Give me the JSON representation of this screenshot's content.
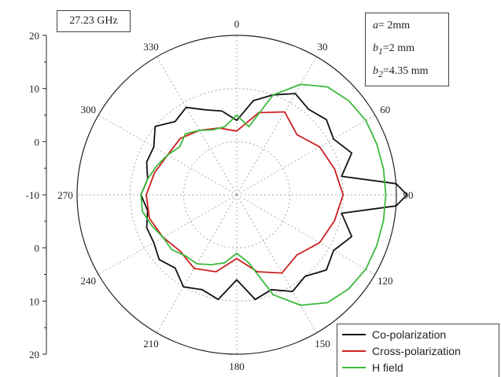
{
  "frequency_label": "27.23 GHz",
  "params": {
    "a": "a",
    "a_val": "= 2mm",
    "b": "b",
    "b1_sub": "1",
    "b1_val": "=2 mm",
    "b2_sub": "2",
    "b2_val": "=4.35 mm"
  },
  "colors": {
    "co": "#111111",
    "cross": "#cc1f1f",
    "h": "#3cb93c",
    "circle": "#222222",
    "grid": "#aaaaaa"
  },
  "chart_data": {
    "type": "polar",
    "radial_ticks_upper": [
      "20",
      "10",
      "0",
      "-10"
    ],
    "radial_ticks_lower": [
      "0",
      "10",
      "20"
    ],
    "angle_labels": [
      "0",
      "30",
      "60",
      "90",
      "120",
      "150",
      "180",
      "210",
      "240",
      "270",
      "300",
      "330"
    ],
    "rlim": [
      -10,
      20
    ],
    "grid": true,
    "legend_position": "bottom-right",
    "series": [
      {
        "name": "Co-polarization",
        "key": "co",
        "points": [
          [
            0,
            4
          ],
          [
            10,
            8
          ],
          [
            20,
            10
          ],
          [
            30,
            12
          ],
          [
            40,
            11
          ],
          [
            50,
            12
          ],
          [
            60,
            11
          ],
          [
            70,
            13
          ],
          [
            80,
            10
          ],
          [
            86,
            20
          ],
          [
            90,
            22
          ],
          [
            94,
            20
          ],
          [
            100,
            10
          ],
          [
            110,
            13
          ],
          [
            120,
            11
          ],
          [
            130,
            12
          ],
          [
            140,
            10
          ],
          [
            150,
            11
          ],
          [
            160,
            9
          ],
          [
            170,
            10
          ],
          [
            180,
            6
          ],
          [
            190,
            10
          ],
          [
            200,
            9
          ],
          [
            210,
            10
          ],
          [
            220,
            8
          ],
          [
            230,
            9
          ],
          [
            240,
            8
          ],
          [
            250,
            8
          ],
          [
            260,
            7
          ],
          [
            270,
            8
          ],
          [
            280,
            7
          ],
          [
            290,
            8
          ],
          [
            300,
            8
          ],
          [
            310,
            10
          ],
          [
            320,
            8
          ],
          [
            330,
            9
          ],
          [
            340,
            7
          ],
          [
            350,
            6
          ]
        ]
      },
      {
        "name": "Cross-polarization",
        "key": "cross",
        "points": [
          [
            0,
            2
          ],
          [
            15,
            6
          ],
          [
            30,
            8
          ],
          [
            45,
            6
          ],
          [
            60,
            8
          ],
          [
            75,
            9
          ],
          [
            90,
            10
          ],
          [
            105,
            9
          ],
          [
            120,
            8
          ],
          [
            135,
            6
          ],
          [
            150,
            7
          ],
          [
            165,
            5
          ],
          [
            180,
            2
          ],
          [
            195,
            5
          ],
          [
            210,
            6
          ],
          [
            225,
            5
          ],
          [
            240,
            6
          ],
          [
            255,
            7
          ],
          [
            270,
            7
          ],
          [
            285,
            6
          ],
          [
            300,
            5
          ],
          [
            315,
            5
          ],
          [
            330,
            4
          ],
          [
            345,
            3
          ]
        ]
      },
      {
        "name": "H field",
        "key": "h",
        "points": [
          [
            0,
            5
          ],
          [
            10,
            3
          ],
          [
            20,
            10
          ],
          [
            30,
            14
          ],
          [
            40,
            16.5
          ],
          [
            50,
            17.5
          ],
          [
            60,
            18
          ],
          [
            70,
            18
          ],
          [
            80,
            18
          ],
          [
            90,
            18
          ],
          [
            100,
            18
          ],
          [
            110,
            18
          ],
          [
            120,
            18
          ],
          [
            130,
            17.5
          ],
          [
            140,
            16.5
          ],
          [
            150,
            14
          ],
          [
            160,
            10
          ],
          [
            170,
            3
          ],
          [
            180,
            1
          ],
          [
            190,
            3
          ],
          [
            200,
            4
          ],
          [
            210,
            5
          ],
          [
            220,
            5
          ],
          [
            230,
            6
          ],
          [
            240,
            6
          ],
          [
            250,
            7
          ],
          [
            260,
            8
          ],
          [
            270,
            8
          ],
          [
            280,
            7
          ],
          [
            290,
            6
          ],
          [
            300,
            5
          ],
          [
            310,
            4
          ],
          [
            320,
            5
          ],
          [
            330,
            4
          ],
          [
            340,
            3
          ],
          [
            350,
            3
          ]
        ]
      }
    ]
  }
}
